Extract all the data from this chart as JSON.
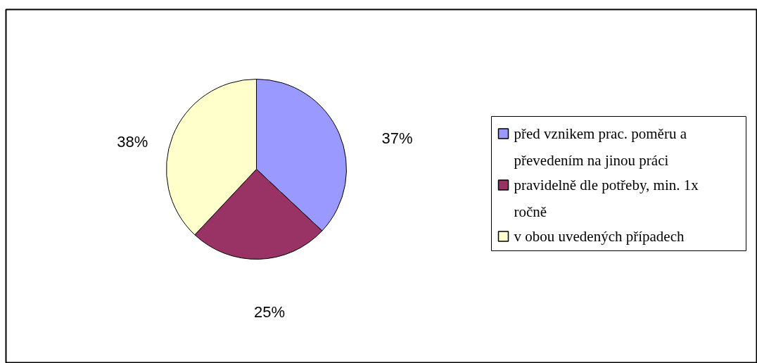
{
  "chart_data": {
    "type": "pie",
    "categories": [
      "před vznikem prac. poměru a převedením na jinou práci",
      "pravidelně dle potřeby, min. 1x ročně",
      "v obou uvedených případech"
    ],
    "values": [
      37,
      25,
      38
    ],
    "colors": [
      "#9999ff",
      "#993366",
      "#ffffcc"
    ],
    "value_labels": [
      "37%",
      "25%",
      "38%"
    ],
    "legend": "right"
  }
}
